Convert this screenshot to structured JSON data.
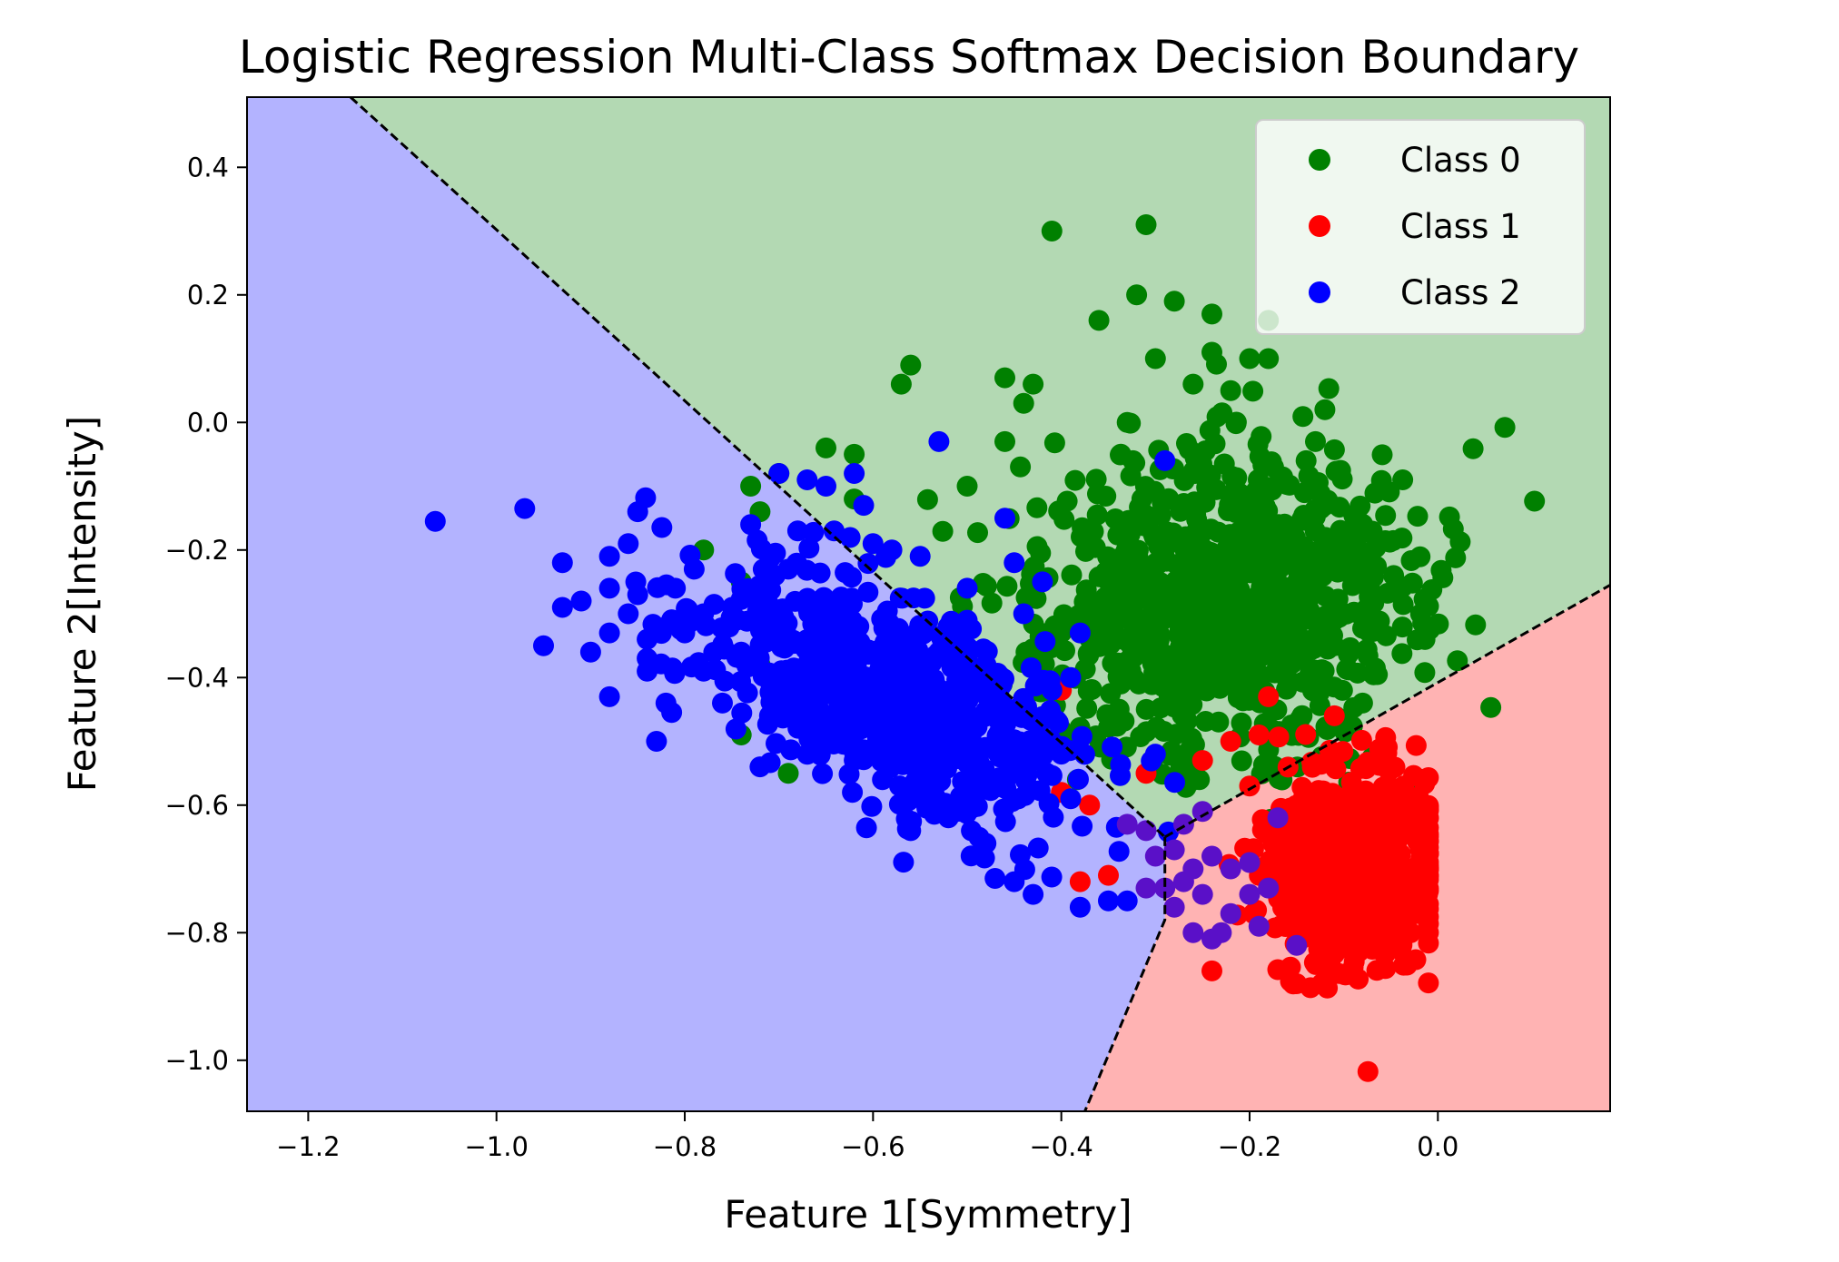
{
  "chart_data": {
    "type": "scatter",
    "title": "Logistic Regression Multi-Class Softmax Decision Boundary",
    "xlabel": "Feature 1[Symmetry]",
    "ylabel": "Feature 2[Intensity]",
    "xlim": [
      -1.265,
      0.183
    ],
    "ylim": [
      -1.08,
      0.51
    ],
    "x_ticks": [
      -1.2,
      -1.0,
      -0.8,
      -0.6,
      -0.4,
      -0.2,
      0.0
    ],
    "x_tick_labels": [
      "−1.2",
      "−1.0",
      "−0.8",
      "−0.6",
      "−0.4",
      "−0.2",
      "0.0"
    ],
    "y_ticks": [
      0.4,
      0.2,
      0.0,
      -0.2,
      -0.4,
      -0.6,
      -0.8,
      -1.0
    ],
    "y_tick_labels": [
      "0.4",
      "0.2",
      "0.0",
      "−0.2",
      "−0.4",
      "−0.6",
      "−0.8",
      "−1.0"
    ],
    "legend": {
      "position": "top-right"
    },
    "regions": [
      {
        "class": "Class 0",
        "color": "#b3d9b3",
        "polygon": [
          [
            -1.155,
            0.51
          ],
          [
            0.183,
            0.51
          ],
          [
            0.183,
            -0.255
          ],
          [
            -0.29,
            -0.65
          ]
        ]
      },
      {
        "class": "Class 1",
        "color": "#ffb3b3",
        "polygon": [
          [
            0.183,
            -0.255
          ],
          [
            0.183,
            -1.08
          ],
          [
            -0.375,
            -1.08
          ],
          [
            -0.29,
            -0.78
          ],
          [
            -0.29,
            -0.65
          ]
        ]
      },
      {
        "class": "Class 2",
        "color": "#b3b3ff",
        "polygon": [
          [
            -1.265,
            0.51
          ],
          [
            -1.155,
            0.51
          ],
          [
            -0.29,
            -0.65
          ],
          [
            -0.29,
            -0.78
          ],
          [
            -0.375,
            -1.08
          ],
          [
            -1.265,
            -1.08
          ]
        ]
      }
    ],
    "boundaries": [
      [
        [
          -1.155,
          0.51
        ],
        [
          -0.29,
          -0.65
        ]
      ],
      [
        [
          -0.29,
          -0.65
        ],
        [
          0.183,
          -0.255
        ]
      ],
      [
        [
          -0.29,
          -0.65
        ],
        [
          -0.29,
          -0.78
        ],
        [
          -0.375,
          -1.08
        ]
      ]
    ],
    "series": [
      {
        "name": "Class 0",
        "color": "#008000",
        "cluster": {
          "center": [
            -0.23,
            -0.28
          ],
          "spread": [
            0.095,
            0.12
          ],
          "count": 900
        },
        "points": [
          [
            -0.41,
            0.3
          ],
          [
            -0.31,
            0.31
          ],
          [
            -0.32,
            0.2
          ],
          [
            -0.28,
            0.19
          ],
          [
            -0.24,
            0.17
          ],
          [
            -0.18,
            0.16
          ],
          [
            -0.36,
            0.16
          ],
          [
            -0.56,
            0.09
          ],
          [
            -0.57,
            0.06
          ],
          [
            -0.24,
            0.11
          ],
          [
            -0.18,
            0.1
          ],
          [
            -0.12,
            0.02
          ],
          [
            -0.12,
            -0.13
          ],
          [
            -0.1,
            -0.2
          ],
          [
            -0.09,
            -0.25
          ],
          [
            -0.11,
            -0.31
          ],
          [
            -0.11,
            -0.35
          ],
          [
            -0.08,
            -0.44
          ],
          [
            -0.62,
            -0.12
          ],
          [
            -0.62,
            -0.05
          ],
          [
            -0.7,
            -0.08
          ],
          [
            -0.72,
            -0.14
          ],
          [
            -0.73,
            -0.1
          ],
          [
            -0.65,
            -0.04
          ],
          [
            -0.78,
            -0.2
          ],
          [
            -0.74,
            -0.25
          ],
          [
            -0.74,
            -0.49
          ],
          [
            -0.69,
            -0.55
          ],
          [
            -0.72,
            -0.38
          ],
          [
            -0.5,
            -0.1
          ],
          [
            -0.46,
            -0.03
          ],
          [
            -0.44,
            0.03
          ],
          [
            -0.46,
            0.07
          ],
          [
            -0.43,
            0.06
          ],
          [
            -0.2,
            0.1
          ],
          [
            -0.22,
            0.05
          ],
          [
            -0.3,
            0.1
          ],
          [
            -0.26,
            0.06
          ],
          [
            -0.33,
            0.0
          ],
          [
            -0.14,
            -0.06
          ],
          [
            -0.13,
            -0.03
          ]
        ]
      },
      {
        "name": "Class 1",
        "color": "#ff0000",
        "cluster": {
          "center": [
            -0.09,
            -0.7
          ],
          "spread": [
            0.045,
            0.075
          ],
          "count": 750
        },
        "points": [
          [
            -0.24,
            -0.86
          ],
          [
            -0.15,
            -0.88
          ],
          [
            -0.4,
            -0.42
          ],
          [
            -0.18,
            -0.43
          ],
          [
            -0.11,
            -0.46
          ],
          [
            -0.22,
            -0.5
          ],
          [
            -0.19,
            -0.49
          ],
          [
            -0.25,
            -0.53
          ],
          [
            -0.31,
            -0.55
          ],
          [
            -0.35,
            -0.71
          ],
          [
            -0.38,
            -0.72
          ],
          [
            -0.37,
            -0.6
          ],
          [
            -0.4,
            -0.58
          ],
          [
            -0.2,
            -0.57
          ]
        ]
      },
      {
        "name": "Class 2",
        "color": "#0000ff",
        "cluster": {
          "center": [
            -0.58,
            -0.43
          ],
          "spread": [
            0.1,
            0.08
          ],
          "count": 700
        },
        "points": [
          [
            -1.065,
            -0.155
          ],
          [
            -0.97,
            -0.135
          ],
          [
            -0.95,
            -0.35
          ],
          [
            -0.93,
            -0.22
          ],
          [
            -0.93,
            -0.29
          ],
          [
            -0.91,
            -0.28
          ],
          [
            -0.9,
            -0.36
          ],
          [
            -0.88,
            -0.21
          ],
          [
            -0.88,
            -0.26
          ],
          [
            -0.88,
            -0.33
          ],
          [
            -0.88,
            -0.43
          ],
          [
            -0.86,
            -0.19
          ],
          [
            -0.86,
            -0.3
          ],
          [
            -0.85,
            -0.14
          ],
          [
            -0.85,
            -0.27
          ],
          [
            -0.84,
            -0.34
          ],
          [
            -0.84,
            -0.39
          ],
          [
            -0.84,
            -0.37
          ],
          [
            -0.83,
            -0.5
          ],
          [
            -0.82,
            -0.44
          ],
          [
            -0.81,
            -0.26
          ],
          [
            -0.8,
            -0.33
          ],
          [
            -0.79,
            -0.23
          ],
          [
            -0.78,
            -0.3
          ],
          [
            -0.78,
            -0.39
          ],
          [
            -0.76,
            -0.44
          ],
          [
            -0.74,
            -0.36
          ],
          [
            -0.73,
            -0.16
          ],
          [
            -0.72,
            -0.54
          ],
          [
            -0.71,
            -0.46
          ],
          [
            -0.7,
            -0.08
          ],
          [
            -0.69,
            -0.23
          ],
          [
            -0.68,
            -0.17
          ],
          [
            -0.67,
            -0.09
          ],
          [
            -0.65,
            -0.1
          ],
          [
            -0.62,
            -0.08
          ],
          [
            -0.61,
            -0.13
          ],
          [
            -0.6,
            -0.19
          ],
          [
            -0.59,
            -0.56
          ],
          [
            -0.58,
            -0.2
          ],
          [
            -0.55,
            -0.21
          ],
          [
            -0.53,
            -0.03
          ],
          [
            -0.5,
            -0.26
          ],
          [
            -0.5,
            -0.31
          ],
          [
            -0.48,
            -0.38
          ],
          [
            -0.46,
            -0.15
          ],
          [
            -0.45,
            -0.22
          ],
          [
            -0.44,
            -0.3
          ],
          [
            -0.42,
            -0.25
          ],
          [
            -0.41,
            -0.42
          ],
          [
            -0.4,
            -0.52
          ],
          [
            -0.39,
            -0.59
          ],
          [
            -0.38,
            -0.76
          ],
          [
            -0.35,
            -0.75
          ],
          [
            -0.33,
            -0.75
          ],
          [
            -0.38,
            -0.33
          ],
          [
            -0.39,
            -0.4
          ],
          [
            -0.45,
            -0.72
          ],
          [
            -0.43,
            -0.74
          ],
          [
            -0.48,
            -0.66
          ],
          [
            -0.52,
            -0.62
          ],
          [
            -0.56,
            -0.64
          ],
          [
            -0.3,
            -0.52
          ],
          [
            -0.29,
            -0.06
          ]
        ]
      }
    ],
    "overlap_points": [
      [
        -0.3,
        -0.68
      ],
      [
        -0.29,
        -0.73
      ],
      [
        -0.28,
        -0.76
      ],
      [
        -0.27,
        -0.72
      ],
      [
        -0.26,
        -0.8
      ],
      [
        -0.24,
        -0.68
      ],
      [
        -0.24,
        -0.81
      ],
      [
        -0.22,
        -0.7
      ],
      [
        -0.22,
        -0.77
      ],
      [
        -0.2,
        -0.69
      ],
      [
        -0.2,
        -0.74
      ],
      [
        -0.19,
        -0.79
      ],
      [
        -0.18,
        -0.73
      ],
      [
        -0.17,
        -0.62
      ],
      [
        -0.15,
        -0.82
      ],
      [
        -0.25,
        -0.74
      ],
      [
        -0.31,
        -0.73
      ],
      [
        -0.28,
        -0.67
      ],
      [
        -0.26,
        -0.7
      ],
      [
        -0.23,
        -0.8
      ],
      [
        -0.33,
        -0.63
      ],
      [
        -0.31,
        -0.64
      ],
      [
        -0.27,
        -0.63
      ],
      [
        -0.25,
        -0.61
      ]
    ]
  }
}
